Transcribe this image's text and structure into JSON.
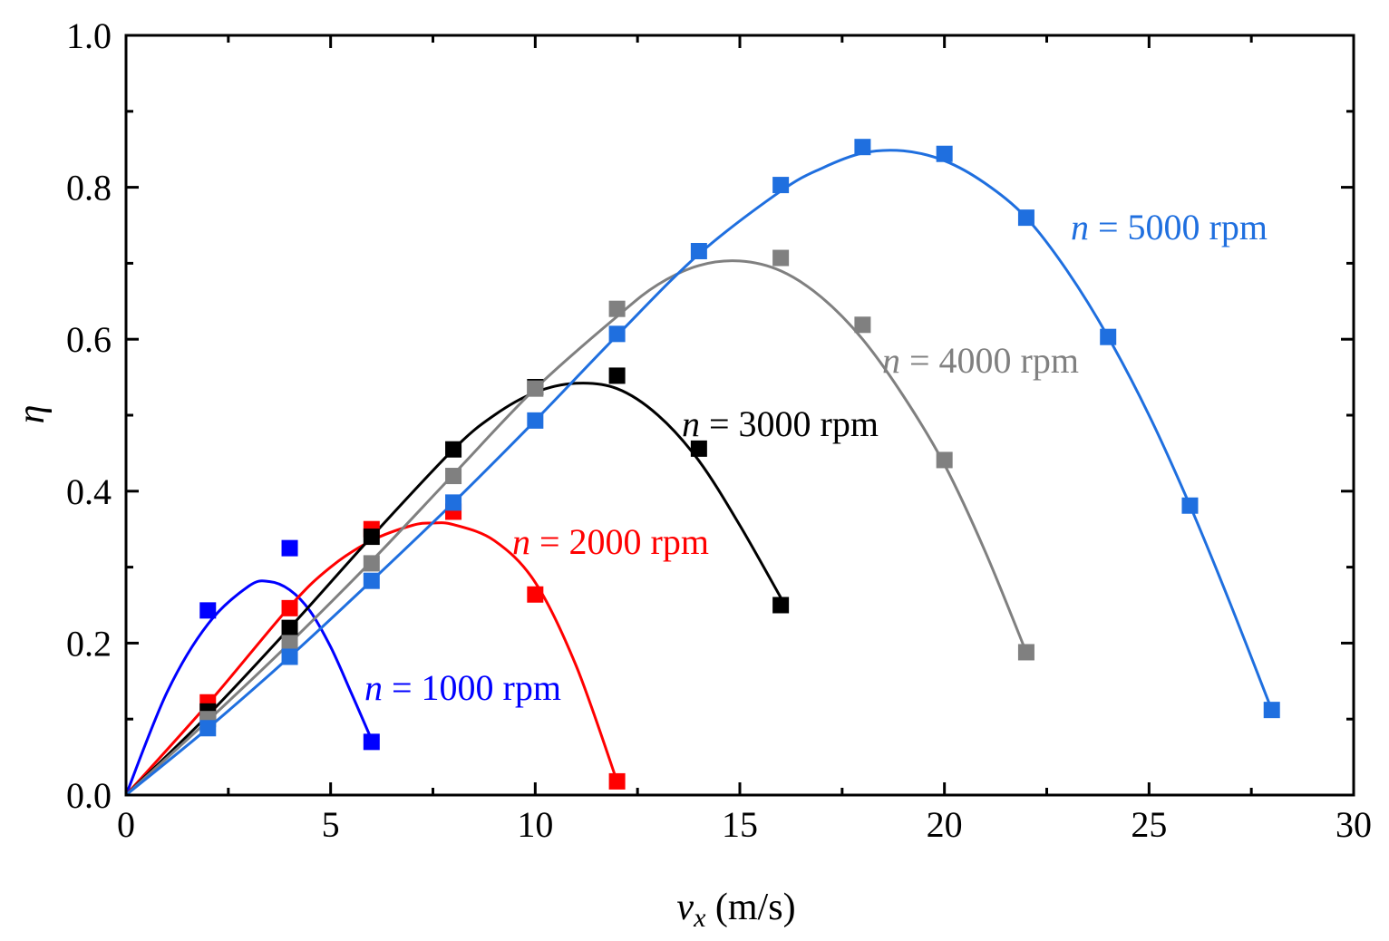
{
  "chart_data": {
    "type": "scatter",
    "title": "",
    "xlabel": {
      "var": "v",
      "sub": "x",
      "unit": " (m/s)"
    },
    "ylabel": "η",
    "xlim": [
      0,
      30
    ],
    "ylim": [
      0,
      1.0
    ],
    "xticks": [
      0,
      5,
      10,
      15,
      20,
      25,
      30
    ],
    "yticks": [
      0.0,
      0.2,
      0.4,
      0.6,
      0.8,
      1.0
    ],
    "xtick_labels": [
      "0",
      "5",
      "10",
      "15",
      "20",
      "25",
      "30"
    ],
    "ytick_labels": [
      "0.0",
      "0.2",
      "0.4",
      "0.6",
      "0.8",
      "1.0"
    ],
    "grid": false,
    "legend": "none",
    "series": [
      {
        "label": {
          "var": "n",
          "rest": " = 1000 rpm"
        },
        "color": "#0000ff",
        "x": [
          2,
          4,
          6
        ],
        "y": [
          0.243,
          0.325,
          0.07
        ],
        "fit": [
          [
            0,
            0
          ],
          [
            1,
            0.135
          ],
          [
            2,
            0.225
          ],
          [
            3,
            0.275
          ],
          [
            3.5,
            0.281
          ],
          [
            4,
            0.27
          ],
          [
            4.5,
            0.242
          ],
          [
            5,
            0.195
          ],
          [
            5.5,
            0.135
          ],
          [
            6,
            0.073
          ]
        ]
      },
      {
        "label": {
          "var": "n",
          "rest": " = 2000 rpm"
        },
        "color": "#ff0000",
        "x": [
          2,
          4,
          6,
          8,
          10,
          12
        ],
        "y": [
          0.122,
          0.246,
          0.35,
          0.373,
          0.264,
          0.018
        ],
        "fit": [
          [
            0,
            0
          ],
          [
            2,
            0.12
          ],
          [
            4,
            0.248
          ],
          [
            5,
            0.3
          ],
          [
            6,
            0.335
          ],
          [
            7,
            0.355
          ],
          [
            7.5,
            0.358
          ],
          [
            8,
            0.356
          ],
          [
            9,
            0.335
          ],
          [
            10,
            0.28
          ],
          [
            11,
            0.17
          ],
          [
            12,
            0.018
          ]
        ]
      },
      {
        "label": {
          "var": "n",
          "rest": " = 3000 rpm"
        },
        "color": "#000000",
        "x": [
          2,
          4,
          6,
          8,
          10,
          12,
          14,
          16
        ],
        "y": [
          0.11,
          0.22,
          0.34,
          0.455,
          0.537,
          0.552,
          0.456,
          0.25
        ],
        "fit": [
          [
            0,
            0
          ],
          [
            2,
            0.105
          ],
          [
            4,
            0.22
          ],
          [
            6,
            0.34
          ],
          [
            8,
            0.455
          ],
          [
            9,
            0.5
          ],
          [
            10,
            0.53
          ],
          [
            11,
            0.542
          ],
          [
            12,
            0.535
          ],
          [
            13,
            0.5
          ],
          [
            14,
            0.44
          ],
          [
            15,
            0.355
          ],
          [
            16,
            0.26
          ]
        ]
      },
      {
        "label": {
          "var": "n",
          "rest": " = 4000 rpm"
        },
        "color": "#808080",
        "x": [
          2,
          4,
          6,
          8,
          10,
          12,
          16,
          18,
          20,
          22
        ],
        "y": [
          0.1,
          0.2,
          0.305,
          0.42,
          0.535,
          0.64,
          0.707,
          0.619,
          0.441,
          0.188
        ],
        "fit": [
          [
            0,
            0
          ],
          [
            2,
            0.098
          ],
          [
            4,
            0.2
          ],
          [
            6,
            0.308
          ],
          [
            8,
            0.422
          ],
          [
            10,
            0.535
          ],
          [
            12,
            0.63
          ],
          [
            13,
            0.672
          ],
          [
            14,
            0.697
          ],
          [
            15,
            0.703
          ],
          [
            16,
            0.69
          ],
          [
            17,
            0.655
          ],
          [
            18,
            0.6
          ],
          [
            19,
            0.525
          ],
          [
            20,
            0.435
          ],
          [
            21,
            0.32
          ],
          [
            22,
            0.188
          ]
        ]
      },
      {
        "label": {
          "var": "n",
          "rest": " = 5000 rpm"
        },
        "color": "#1f6fdf",
        "x": [
          2,
          4,
          6,
          8,
          10,
          12,
          14,
          16,
          18,
          20,
          22,
          24,
          26,
          28
        ],
        "y": [
          0.088,
          0.182,
          0.282,
          0.385,
          0.493,
          0.607,
          0.716,
          0.803,
          0.853,
          0.844,
          0.76,
          0.603,
          0.381,
          0.112
        ],
        "fit": [
          [
            0,
            0
          ],
          [
            2,
            0.088
          ],
          [
            4,
            0.182
          ],
          [
            6,
            0.282
          ],
          [
            8,
            0.385
          ],
          [
            10,
            0.493
          ],
          [
            12,
            0.605
          ],
          [
            14,
            0.712
          ],
          [
            16,
            0.795
          ],
          [
            17,
            0.825
          ],
          [
            18,
            0.845
          ],
          [
            19,
            0.848
          ],
          [
            20,
            0.835
          ],
          [
            21,
            0.805
          ],
          [
            22,
            0.76
          ],
          [
            23,
            0.69
          ],
          [
            24,
            0.603
          ],
          [
            25,
            0.5
          ],
          [
            26,
            0.381
          ],
          [
            27,
            0.25
          ],
          [
            28,
            0.112
          ]
        ]
      }
    ]
  }
}
